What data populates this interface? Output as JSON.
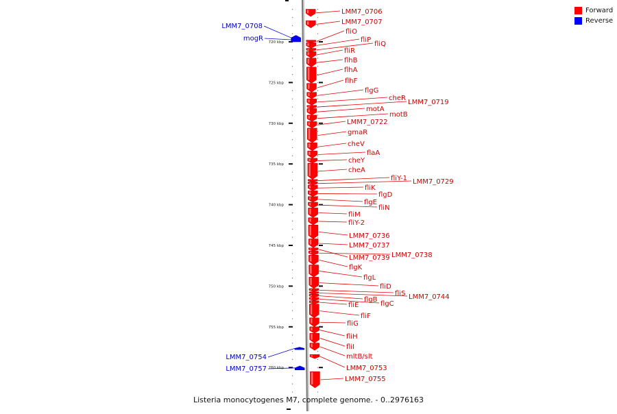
{
  "legend": {
    "forward_label": "Forward",
    "reverse_label": "Reverse",
    "forward_color": "#ff0000",
    "reverse_color": "#0000ff"
  },
  "caption": "Listeria monocytogenes M7, complete genome. - 0..2976163",
  "axis": {
    "unit": "kbp",
    "ticks": [
      {
        "label": "720 kbp",
        "kbp": 720
      },
      {
        "label": "725 kbp",
        "kbp": 725
      },
      {
        "label": "730 kbp",
        "kbp": 730
      },
      {
        "label": "735 kbp",
        "kbp": 735
      },
      {
        "label": "740 kbp",
        "kbp": 740
      },
      {
        "label": "745 kbp",
        "kbp": 745
      },
      {
        "label": "750 kbp",
        "kbp": 750
      },
      {
        "label": "755 kbp",
        "kbp": 755
      },
      {
        "label": "760 kbp",
        "kbp": 760
      }
    ]
  },
  "reverse_genes": [
    {
      "name": "LMM7_0708",
      "start": 719.2,
      "end": 719.8
    },
    {
      "name": "mogR",
      "start": 719.5,
      "end": 720.0
    },
    {
      "name": "LMM7_0754",
      "start": 757.5,
      "end": 757.8
    },
    {
      "name": "LMM7_0757",
      "start": 759.8,
      "end": 760.3
    }
  ],
  "forward_genes": [
    {
      "name": "LMM7_0706",
      "start": 716.0,
      "end": 716.9
    },
    {
      "name": "LMM7_0707",
      "start": 717.4,
      "end": 718.3
    },
    {
      "name": "fliO",
      "start": 719.8,
      "end": 720.1
    },
    {
      "name": "fliP",
      "start": 720.1,
      "end": 720.8
    },
    {
      "name": "fliQ",
      "start": 720.8,
      "end": 721.2
    },
    {
      "name": "fliR",
      "start": 721.2,
      "end": 722.0
    },
    {
      "name": "flhB",
      "start": 722.0,
      "end": 723.1
    },
    {
      "name": "flhA",
      "start": 723.1,
      "end": 725.1
    },
    {
      "name": "flhF",
      "start": 725.1,
      "end": 726.2
    },
    {
      "name": "flgG",
      "start": 726.2,
      "end": 727.0
    },
    {
      "name": "cheR",
      "start": 727.0,
      "end": 727.8
    },
    {
      "name": "LMM7_0719",
      "start": 727.8,
      "end": 728.2
    },
    {
      "name": "motA",
      "start": 728.2,
      "end": 729.0
    },
    {
      "name": "motB",
      "start": 729.0,
      "end": 729.8
    },
    {
      "name": "LMM7_0722",
      "start": 729.8,
      "end": 730.6
    },
    {
      "name": "gmaR",
      "start": 730.6,
      "end": 732.4
    },
    {
      "name": "cheV",
      "start": 732.4,
      "end": 733.4
    },
    {
      "name": "flaA",
      "start": 733.4,
      "end": 734.3
    },
    {
      "name": "cheY",
      "start": 734.3,
      "end": 734.9
    },
    {
      "name": "cheA",
      "start": 734.9,
      "end": 736.9
    },
    {
      "name": "fliY-1",
      "start": 736.9,
      "end": 737.2
    },
    {
      "name": "LMM7_0729",
      "start": 737.2,
      "end": 737.6
    },
    {
      "name": "fliK",
      "start": 737.6,
      "end": 738.3
    },
    {
      "name": "flgD",
      "start": 738.3,
      "end": 739.0
    },
    {
      "name": "flgE",
      "start": 739.0,
      "end": 739.7
    },
    {
      "name": "fliN",
      "start": 739.7,
      "end": 740.4
    },
    {
      "name": "fliM",
      "start": 740.4,
      "end": 741.6
    },
    {
      "name": "fliY-2",
      "start": 741.6,
      "end": 742.5
    },
    {
      "name": "LMM7_0736",
      "start": 742.5,
      "end": 744.2
    },
    {
      "name": "LMM7_0737",
      "start": 744.2,
      "end": 745.3
    },
    {
      "name": "LMM7_0739",
      "start": 745.3,
      "end": 745.7
    },
    {
      "name": "LMM7_0738",
      "start": 745.7,
      "end": 746.2
    },
    {
      "name": "flgK",
      "start": 746.2,
      "end": 747.4
    },
    {
      "name": "flgL",
      "start": 747.4,
      "end": 748.9
    },
    {
      "name": "fliD",
      "start": 748.9,
      "end": 750.3
    },
    {
      "name": "fliS",
      "start": 750.3,
      "end": 750.7
    },
    {
      "name": "LMM7_0744",
      "start": 750.7,
      "end": 751.0
    },
    {
      "name": "flgB",
      "start": 751.0,
      "end": 751.4
    },
    {
      "name": "flgC",
      "start": 751.4,
      "end": 751.8
    },
    {
      "name": "fliE",
      "start": 751.8,
      "end": 752.2
    },
    {
      "name": "fliF",
      "start": 752.2,
      "end": 753.9
    },
    {
      "name": "fliG",
      "start": 753.9,
      "end": 755.0
    },
    {
      "name": "fliH",
      "start": 755.0,
      "end": 755.8
    },
    {
      "name": "fliI",
      "start": 755.8,
      "end": 757.0
    },
    {
      "name": "mltB/slt",
      "start": 757.0,
      "end": 757.9
    },
    {
      "name": "LMM7_0753",
      "start": 758.4,
      "end": 758.9
    },
    {
      "name": "LMM7_0755",
      "start": 760.5,
      "end": 762.5
    }
  ]
}
